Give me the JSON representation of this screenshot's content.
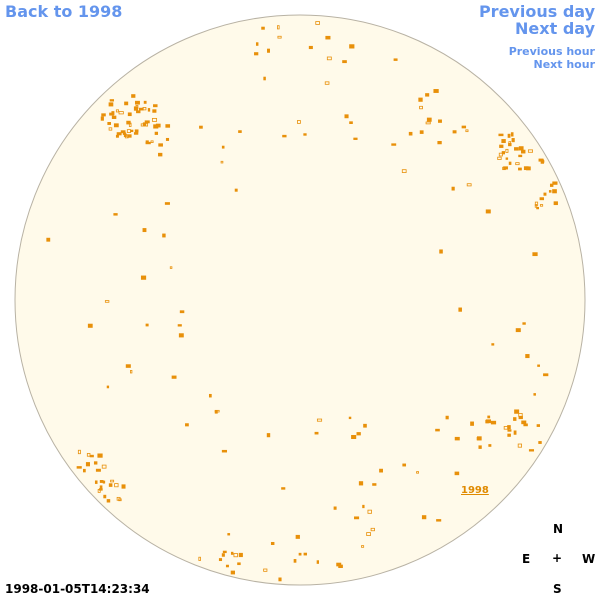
{
  "navigation": {
    "back": "Back to 1998",
    "previous_day": "Previous day",
    "next_day": "Next day",
    "previous_hour": "Previous hour",
    "next_hour": "Next hour"
  },
  "image": {
    "year_label": "1998",
    "timestamp": "1998-01-05T14:23:34"
  },
  "compass": {
    "north": "N",
    "east": "E",
    "center": "+",
    "west": "W",
    "south": "S"
  }
}
